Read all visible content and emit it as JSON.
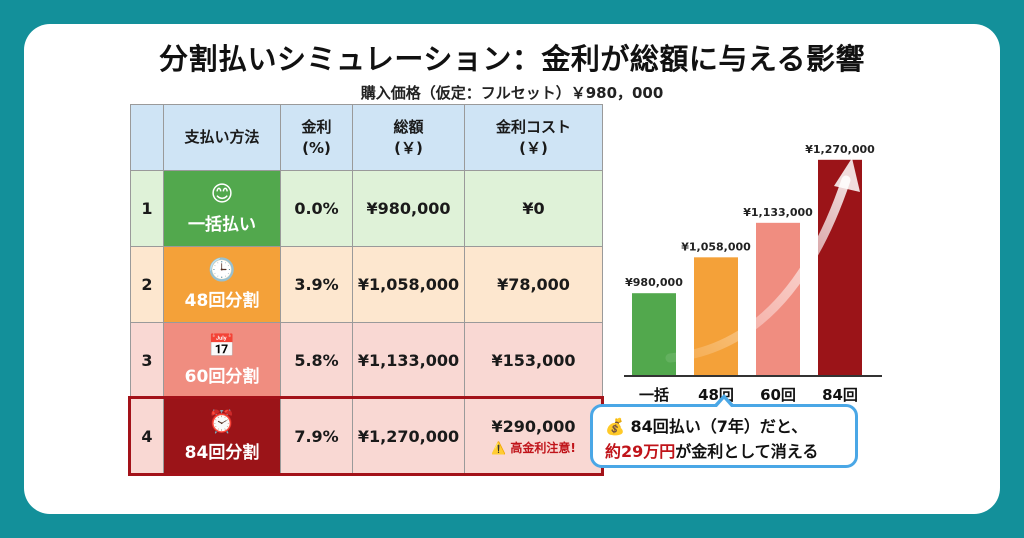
{
  "header": {
    "title": "分割払いシミュレーション：金利が総額に与える影響",
    "subtitle": "購入価格（仮定：フルセット）￥980，000"
  },
  "table": {
    "headers": [
      "",
      "支払い方法",
      "金利\n(%)",
      "総額\n(￥)",
      "金利コスト\n(￥)"
    ],
    "rows": [
      {
        "no": "1",
        "icon": "smiley-icon",
        "method": "一括払い",
        "rate": "0.0%",
        "total": "¥980,000",
        "cost": "¥0",
        "note": ""
      },
      {
        "no": "2",
        "icon": "clock-icon",
        "method": "48回分割",
        "rate": "3.9%",
        "total": "¥1,058,000",
        "cost": "¥78,000",
        "note": ""
      },
      {
        "no": "3",
        "icon": "calendar-icon",
        "method": "60回分割",
        "rate": "5.8%",
        "total": "¥1,133,000",
        "cost": "¥153,000",
        "note": ""
      },
      {
        "no": "4",
        "icon": "alarm-clock-icon",
        "method": "84回分割",
        "rate": "7.9%",
        "total": "¥1,270,000",
        "cost": "¥290,000",
        "note": "⚠️ 高金利注意!"
      }
    ]
  },
  "chart_data": {
    "type": "bar",
    "categories": [
      "一括",
      "48回",
      "60回",
      "84回"
    ],
    "values": [
      980000,
      1058000,
      1133000,
      1270000
    ],
    "data_labels": [
      "¥980,000",
      "¥1,058,000",
      "¥1,133,000",
      "¥1,270,000"
    ],
    "colors": [
      "#52a84d",
      "#f4a139",
      "#f08d80",
      "#9b1418"
    ],
    "ylim": [
      0,
      1300000
    ],
    "grid": false,
    "trend_arrow": true
  },
  "callout": {
    "icon": "money-bag-icon",
    "line1": "84回払い（7年）だと、",
    "line2_red": "約29万円",
    "line2_rest": "が金利として消える"
  }
}
